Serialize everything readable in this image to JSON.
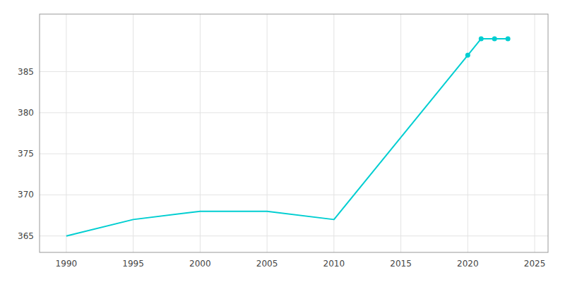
{
  "chart_data": {
    "type": "line",
    "x": [
      1990,
      1995,
      2000,
      2005,
      2010,
      2020,
      2021,
      2022,
      2023
    ],
    "series": [
      {
        "type": "line",
        "color": "#00CED1",
        "values": [
          365,
          367,
          368,
          368,
          367,
          387,
          389,
          389,
          389
        ]
      },
      {
        "type": "scatter",
        "marker": "circle",
        "color": "#00CED1",
        "values": [
          null,
          null,
          null,
          null,
          null,
          387,
          389,
          389,
          389
        ]
      }
    ],
    "xlim": [
      1988,
      2026
    ],
    "ylim": [
      363,
      392
    ],
    "xticks": [
      1990,
      1995,
      2000,
      2005,
      2010,
      2015,
      2020,
      2025
    ],
    "yticks": [
      365,
      370,
      375,
      380,
      385
    ],
    "grid": true
  }
}
